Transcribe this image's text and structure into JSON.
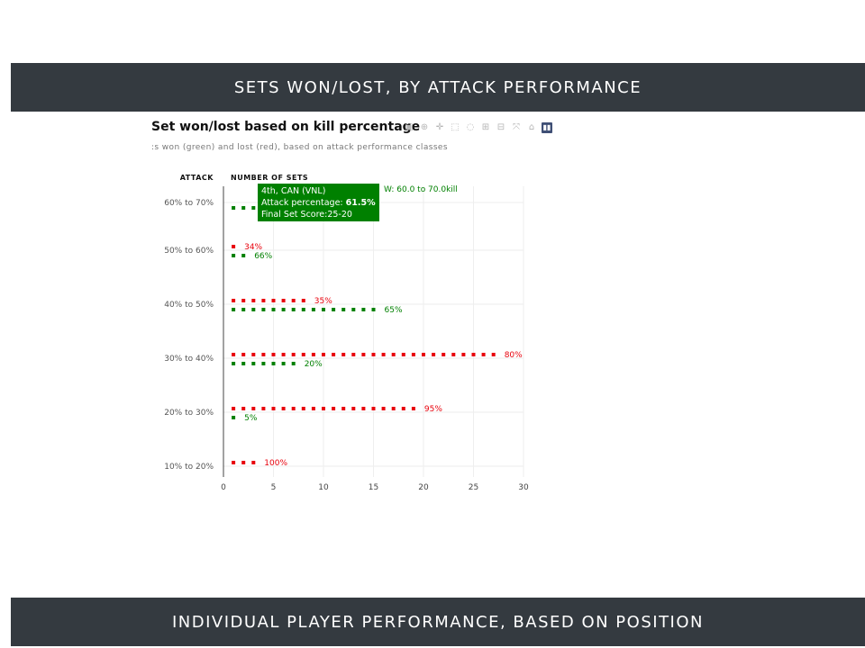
{
  "header": {
    "top_band": "SETS WON/LOST, BY ATTACK PERFORMANCE",
    "bottom_band": "INDIVIDUAL PLAYER PERFORMANCE, BASED ON POSITION"
  },
  "chart_data": {
    "type": "scatter",
    "title": "Set won/lost based on kill percentage",
    "subtitle": ":s won (green) and lost (red), based on attack performance classes",
    "ylabel": "ATTACK",
    "xlabel": "NUMBER OF SETS",
    "xlim": [
      0,
      30
    ],
    "xticks": [
      0,
      5,
      10,
      15,
      20,
      25,
      30
    ],
    "categories": [
      "10% to 20%",
      "20% to 30%",
      "30% to 40%",
      "40% to 50%",
      "50% to 60%",
      "60% to 70%"
    ],
    "series": [
      {
        "color": "#e8000b",
        "counts": [
          3,
          19,
          27,
          8,
          1,
          null
        ],
        "labels": [
          "100%",
          "95%",
          "80%",
          "35%",
          "34%",
          ""
        ]
      },
      {
        "color": "#008000",
        "counts": [
          null,
          1,
          7,
          15,
          2,
          3
        ],
        "labels": [
          "",
          "5%",
          "20%",
          "65%",
          "66%",
          ""
        ]
      }
    ],
    "grid": true,
    "tooltip": {
      "line1": "4th, CAN (VNL)",
      "line2_label": "Attack percentage: ",
      "line2_value": "61.5%",
      "line3": "Final Set Score:25-20",
      "side": "W: 60.0 to 70.0kill"
    }
  },
  "modebar": {
    "icons": [
      "camera-icon",
      "zoom-icon",
      "pan-icon",
      "box-select-icon",
      "lasso-icon",
      "zoom-in-icon",
      "zoom-out-icon",
      "autoscale-icon",
      "home-icon",
      "plotly-logo-icon"
    ]
  }
}
